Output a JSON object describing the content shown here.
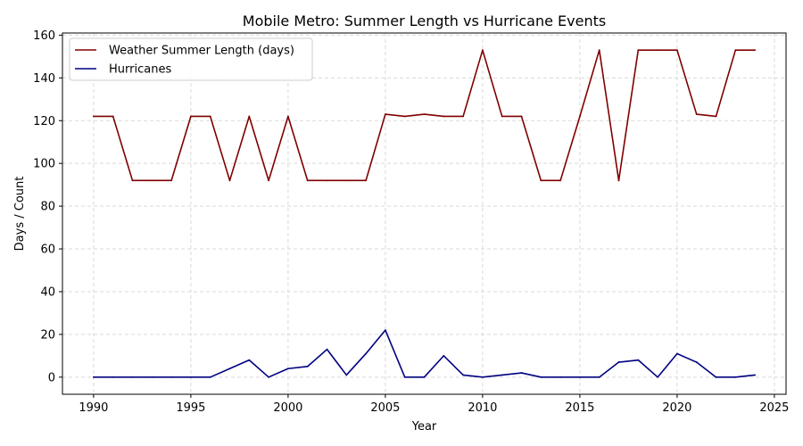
{
  "chart_data": {
    "type": "line",
    "title": "Mobile Metro: Summer Length vs Hurricane Events",
    "xlabel": "Year",
    "ylabel": "Days / Count",
    "xlim": [
      1988.4,
      2025.6
    ],
    "ylim": [
      -8,
      161
    ],
    "xticks": [
      1990,
      1995,
      2000,
      2005,
      2010,
      2015,
      2020,
      2025
    ],
    "yticks": [
      0,
      20,
      40,
      60,
      80,
      100,
      120,
      140,
      160
    ],
    "grid": true,
    "legend_position": "upper-left",
    "x": [
      1990,
      1991,
      1992,
      1993,
      1994,
      1995,
      1996,
      1997,
      1998,
      1999,
      2000,
      2001,
      2002,
      2003,
      2004,
      2005,
      2006,
      2007,
      2008,
      2009,
      2010,
      2011,
      2012,
      2013,
      2014,
      2015,
      2016,
      2017,
      2018,
      2019,
      2020,
      2021,
      2022,
      2023,
      2024
    ],
    "series": [
      {
        "name": "Weather Summer Length (days)",
        "color": "#800000",
        "values": [
          122,
          122,
          92,
          92,
          92,
          122,
          122,
          92,
          122,
          92,
          122,
          92,
          92,
          92,
          92,
          123,
          122,
          123,
          122,
          122,
          153,
          122,
          122,
          92,
          92,
          122,
          153,
          92,
          153,
          153,
          153,
          123,
          122,
          153,
          153
        ]
      },
      {
        "name": "Hurricanes",
        "color": "#000080",
        "values": [
          0,
          0,
          0,
          0,
          0,
          0,
          0,
          4,
          8,
          0,
          4,
          5,
          13,
          1,
          11,
          22,
          0,
          0,
          10,
          1,
          0,
          1,
          2,
          0,
          0,
          0,
          0,
          7,
          8,
          0,
          11,
          7,
          0,
          0,
          1
        ]
      }
    ]
  }
}
